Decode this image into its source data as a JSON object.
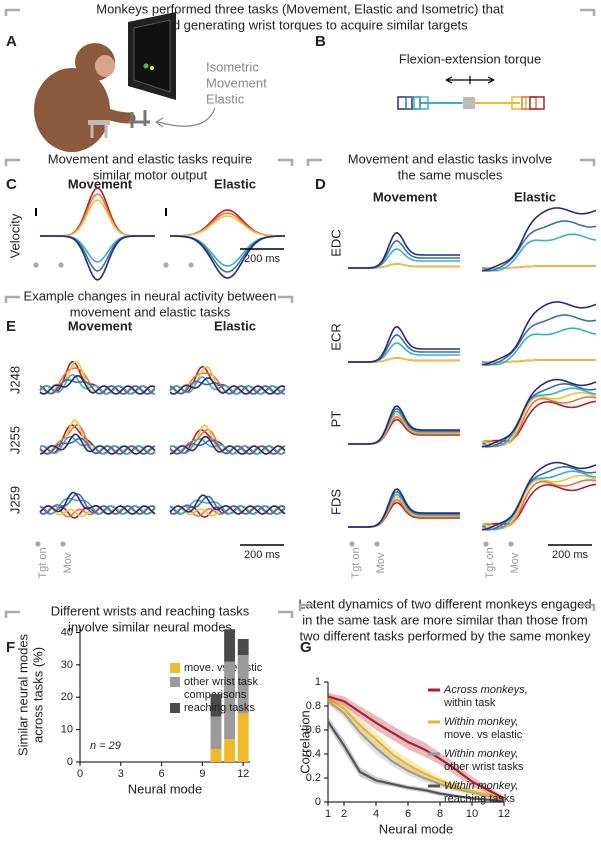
{
  "header": {
    "lines": [
      "Monkeys performed three tasks (Movement, Elastic and Isometric) that",
      "required generating wrist torques to acquire similar targets"
    ]
  },
  "panels": {
    "A": {
      "label": "A",
      "tasks": [
        "Isometric",
        "Movement",
        "Elastic"
      ]
    },
    "B": {
      "label": "B",
      "title": "Flexion-extension torque"
    },
    "C": {
      "heading": [
        "Movement and elastic tasks require",
        "similar motor output"
      ],
      "label": "C",
      "columns": [
        "Movement",
        "Elastic"
      ],
      "ylabel": "Velocity",
      "scale": "200 ms"
    },
    "D": {
      "heading": [
        "Movement and elastic tasks involve",
        "the same muscles"
      ],
      "label": "D",
      "columns": [
        "Movement",
        "Elastic"
      ],
      "rows": [
        "EDC",
        "ECR",
        "PT",
        "FDS"
      ],
      "markers": [
        "Tgt on",
        "Mov"
      ],
      "scale": "200 ms"
    },
    "E": {
      "heading": [
        "Example changes in neural activity between",
        "movement and elastic tasks"
      ],
      "label": "E",
      "columns": [
        "Movement",
        "Elastic"
      ],
      "rows": [
        "J248",
        "J255",
        "J259"
      ],
      "markers": [
        "Tgt on",
        "Mov"
      ],
      "scale": "200 ms"
    },
    "F": {
      "heading": [
        "Different wrists and reaching tasks",
        "involve similar neural modes"
      ],
      "label": "F"
    },
    "G": {
      "heading": [
        "Latent dynamics of two different monkeys engaged",
        "in the same task are more similar than those from",
        "two different tasks performed by the same monkey"
      ],
      "label": "G"
    }
  },
  "chart_data": [
    {
      "type": "stacked-bar",
      "x": [
        10,
        11,
        12
      ],
      "series": [
        {
          "name": "move. vs elastic",
          "color": "#f0b929",
          "values": [
            4,
            7,
            15
          ]
        },
        {
          "name": "other wrist task comparisons",
          "color": "#9a9a9a",
          "values": [
            10,
            24,
            18
          ]
        },
        {
          "name": "reaching tasks",
          "color": "#4a4a4a",
          "values": [
            7,
            10,
            5
          ]
        }
      ],
      "xlim": [
        0,
        12.5
      ],
      "ylim": [
        0,
        42
      ],
      "xticks": [
        0,
        3,
        6,
        9,
        12
      ],
      "yticks": [
        0,
        10,
        20,
        30,
        40
      ],
      "xlabel": "Neural mode",
      "ylabel": [
        "Similar neural modes",
        "across tasks (%)"
      ],
      "annotation": "n = 29"
    },
    {
      "type": "line",
      "x": [
        1,
        2,
        3,
        4,
        5,
        6,
        7,
        8,
        9,
        10,
        11,
        12
      ],
      "series": [
        {
          "name": "Across monkeys,",
          "detail": "within task",
          "color": "#b01f2e",
          "values": [
            0.88,
            0.84,
            0.75,
            0.66,
            0.58,
            0.5,
            0.44,
            0.36,
            0.27,
            0.17,
            0.1,
            0.03
          ],
          "errors": [
            0.03,
            0.04,
            0.05,
            0.06,
            0.06,
            0.06,
            0.06,
            0.05,
            0.05,
            0.04,
            0.03,
            0.02
          ]
        },
        {
          "name": "Within monkey,",
          "detail": "move. vs elastic",
          "color": "#e8b62a",
          "values": [
            0.86,
            0.78,
            0.64,
            0.52,
            0.4,
            0.31,
            0.24,
            0.18,
            0.13,
            0.09,
            0.06,
            0.02
          ],
          "errors": [
            0.03,
            0.05,
            0.06,
            0.06,
            0.05,
            0.05,
            0.04,
            0.03,
            0.03,
            0.02,
            0.02,
            0.01
          ]
        },
        {
          "name": "Within monkey,",
          "detail": "other wrist tasks",
          "color": "#9a9a9a",
          "values": [
            0.84,
            0.74,
            0.58,
            0.45,
            0.34,
            0.26,
            0.2,
            0.15,
            0.11,
            0.08,
            0.05,
            0.02
          ],
          "errors": [
            0.03,
            0.04,
            0.05,
            0.05,
            0.04,
            0.04,
            0.03,
            0.03,
            0.02,
            0.02,
            0.01,
            0.01
          ]
        },
        {
          "name": "Within monkey,",
          "detail": "reaching tasks",
          "color": "#555555",
          "values": [
            0.67,
            0.47,
            0.25,
            0.18,
            0.15,
            0.12,
            0.1,
            0.07,
            0.05,
            0.03,
            0.02,
            0.01
          ],
          "errors": [
            0.04,
            0.05,
            0.04,
            0.03,
            0.02,
            0.02,
            0.02,
            0.02,
            0.01,
            0.01,
            0.01,
            0.01
          ]
        }
      ],
      "xlim": [
        1,
        12
      ],
      "ylim": [
        0,
        1
      ],
      "xticks": [
        1,
        2,
        4,
        6,
        8,
        10,
        12
      ],
      "yticks": [
        0,
        {
          "value": 0.2,
          "label": "0.2"
        },
        {
          "value": 0.4,
          "label": "0.4"
        },
        {
          "value": 0.6,
          "label": "0.6"
        },
        {
          "value": 0.8,
          "label": "0.8"
        },
        1
      ],
      "xlabel": "Neural mode",
      "ylabel": "Correlation"
    }
  ]
}
